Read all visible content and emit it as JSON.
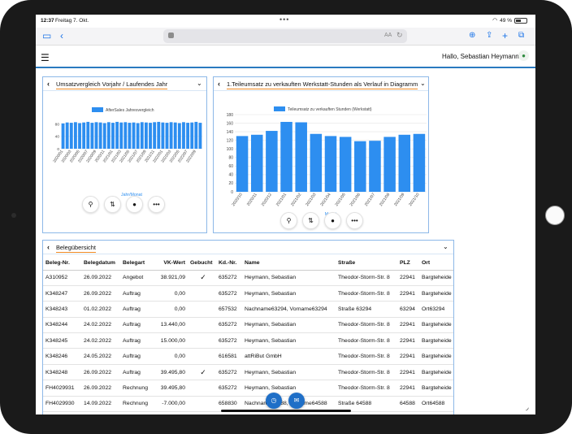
{
  "status": {
    "time": "12:37",
    "date": "Freitag 7. Okt.",
    "battery": "49 %"
  },
  "browser": {
    "aa": "AA"
  },
  "header": {
    "greeting": "Hallo, Sebastian Heymann"
  },
  "panel1": {
    "title": "Umsatzvergleich Vorjahr / Laufendes Jahr",
    "chart_data": {
      "type": "bar",
      "legend": "AfterSales Jahresvergleich",
      "xlabel": "Jahr/Monat",
      "ylim": [
        0,
        100
      ],
      "yticks": [
        0,
        40,
        80
      ],
      "categories": [
        "2020/01",
        "2020/02",
        "2020/03",
        "2020/04",
        "2020/05",
        "2020/06",
        "2020/07",
        "2020/08",
        "2020/09",
        "2020/10",
        "2020/11",
        "2020/12",
        "2021/01",
        "2021/02",
        "2021/03",
        "2021/04",
        "2021/05",
        "2021/06",
        "2021/07",
        "2021/08",
        "2021/09",
        "2021/10",
        "2021/11",
        "2021/12",
        "2022/01",
        "2022/02",
        "2022/03",
        "2022/04",
        "2022/05",
        "2022/06",
        "2022/07",
        "2022/08",
        "2022/09",
        "2022/10"
      ],
      "values": [
        82,
        85,
        84,
        86,
        83,
        85,
        87,
        84,
        86,
        85,
        83,
        86,
        84,
        87,
        85,
        86,
        84,
        85,
        83,
        86,
        85,
        84,
        86,
        87,
        85,
        84,
        86,
        85,
        83,
        86,
        84,
        85,
        87,
        84
      ]
    }
  },
  "panel2": {
    "title": "1.Teileumsatz zu verkauften Werkstatt-Stunden als Verlauf in Diagramm",
    "chart_data": {
      "type": "bar",
      "legend": "Teileumsatz zu verkauften Stunden (Werkstatt)",
      "xlabel": "Monat",
      "ylim": [
        0,
        180
      ],
      "yticks": [
        0,
        20,
        40,
        60,
        80,
        100,
        120,
        140,
        160,
        180
      ],
      "categories": [
        "2020/10",
        "2020/11",
        "2020/12",
        "2021/01",
        "2021/02",
        "2021/03",
        "2021/04",
        "2021/05",
        "2021/06",
        "2021/07",
        "2021/08",
        "2021/09",
        "2021/10"
      ],
      "values": [
        130,
        133,
        142,
        163,
        162,
        135,
        130,
        128,
        118,
        119,
        128,
        133,
        135
      ]
    }
  },
  "panel3": {
    "title": "Belegübersicht",
    "columns": [
      "Beleg-Nr.",
      "Belegdatum",
      "Belegart",
      "VK-Wert",
      "Gebucht",
      "Kd.-Nr.",
      "Name",
      "Straße",
      "PLZ",
      "Ort"
    ],
    "rows": [
      [
        "A310952",
        "26.09.2022",
        "Angebot",
        "38.921,09",
        "✓",
        "635272",
        "Heymann, Sebastian",
        "Theodor-Storm-Str. 8",
        "22941",
        "Bargteheide"
      ],
      [
        "K348247",
        "26.09.2022",
        "Auftrag",
        "0,00",
        "",
        "635272",
        "Heymann, Sebastian",
        "Theodor-Storm-Str. 8",
        "22941",
        "Bargteheide"
      ],
      [
        "K348243",
        "01.02.2022",
        "Auftrag",
        "0,00",
        "",
        "657532",
        "Nachname63294, Vorname63294",
        "Straße 63294",
        "63294",
        "Ort63294"
      ],
      [
        "K348244",
        "24.02.2022",
        "Auftrag",
        "13.440,00",
        "",
        "635272",
        "Heymann, Sebastian",
        "Theodor-Storm-Str. 8",
        "22941",
        "Bargteheide"
      ],
      [
        "K348245",
        "24.02.2022",
        "Auftrag",
        "15.000,00",
        "",
        "635272",
        "Heymann, Sebastian",
        "Theodor-Storm-Str. 8",
        "22941",
        "Bargteheide"
      ],
      [
        "K348246",
        "24.05.2022",
        "Auftrag",
        "0,00",
        "",
        "616581",
        "attRiBut GmbH",
        "Theodor-Storm-Str. 8",
        "22941",
        "Bargteheide"
      ],
      [
        "K348248",
        "26.09.2022",
        "Auftrag",
        "39.495,80",
        "✓",
        "635272",
        "Heymann, Sebastian",
        "Theodor-Storm-Str. 8",
        "22941",
        "Bargteheide"
      ],
      [
        "FH4029931",
        "26.09.2022",
        "Rechnung",
        "39.495,80",
        "",
        "635272",
        "Heymann, Sebastian",
        "Theodor-Storm-Str. 8",
        "22941",
        "Bargteheide"
      ],
      [
        "FH4029930",
        "14.09.2022",
        "Rechnung",
        "-7.000,00",
        "",
        "658830",
        "Nachname64588, Vorname64588",
        "Straße 64588",
        "64588",
        "Ort64588"
      ]
    ]
  }
}
